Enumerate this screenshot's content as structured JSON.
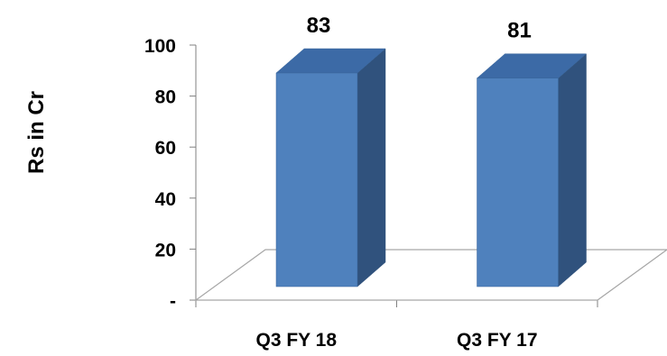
{
  "chart_data": {
    "type": "bar",
    "title": "",
    "xlabel": "",
    "ylabel": "Rs in Cr",
    "categories": [
      "Q3 FY 18",
      "Q3 FY 17"
    ],
    "values": [
      83,
      81
    ],
    "data_labels": [
      "83",
      "81"
    ],
    "ylim": [
      0,
      100
    ],
    "yticks": [
      0,
      20,
      40,
      60,
      80,
      100
    ],
    "ytick_labels": [
      "-",
      "20",
      "40",
      "60",
      "80",
      "100"
    ],
    "grid": false,
    "legend": "none",
    "style": "3d-column",
    "colors": {
      "bar_front": "#4F81BD",
      "bar_side": "#30527D",
      "bar_top": "#3C6AA6",
      "bar_edge": "#3A679C",
      "floor_stroke": "#A6A6A6",
      "axis": "#808080"
    }
  }
}
